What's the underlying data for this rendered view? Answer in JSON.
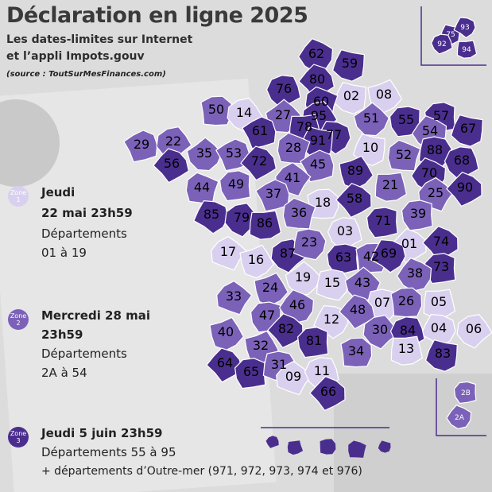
{
  "header": {
    "title": "Déclaration en ligne 2025",
    "subtitle_line1": "Les dates-limites sur Internet",
    "subtitle_line2": "et l’appli Impots.gouv",
    "source": "(source : ToutSurMesFinances.com)"
  },
  "colors": {
    "zone1": "#d9d0ef",
    "zone2": "#7b62b8",
    "zone3": "#4a2e8e",
    "border": "#ffffff"
  },
  "zones": [
    {
      "badge_word": "Zone",
      "badge_num": "1",
      "date_line1": "Jeudi",
      "date_line2": "22 mai 23h59",
      "depts_line1": "Départements",
      "depts_line2": "01 à 19",
      "color": "#d9d0ef"
    },
    {
      "badge_word": "Zone",
      "badge_num": "2",
      "date_line1": "Mercredi 28 mai",
      "date_line2": "23h59",
      "depts_line1": "Départements",
      "depts_line2": "2A à 54",
      "color": "#7b62b8"
    },
    {
      "badge_word": "Zone",
      "badge_num": "3",
      "date_line1": "Jeudi 5 juin 23h59",
      "depts_line1": "Départements 55 à 95",
      "depts_line2": "+ départements d’Outre-mer (971, 972, 973, 974 et 976)",
      "color": "#4a2e8e"
    }
  ],
  "departements": [
    {
      "code": "62",
      "zone": 3
    },
    {
      "code": "59",
      "zone": 3
    },
    {
      "code": "80",
      "zone": 3
    },
    {
      "code": "76",
      "zone": 3
    },
    {
      "code": "02",
      "zone": 1
    },
    {
      "code": "08",
      "zone": 1
    },
    {
      "code": "60",
      "zone": 3
    },
    {
      "code": "50",
      "zone": 2
    },
    {
      "code": "14",
      "zone": 1
    },
    {
      "code": "27",
      "zone": 2
    },
    {
      "code": "95",
      "zone": 3
    },
    {
      "code": "51",
      "zone": 2
    },
    {
      "code": "55",
      "zone": 3
    },
    {
      "code": "57",
      "zone": 3
    },
    {
      "code": "67",
      "zone": 3
    },
    {
      "code": "54",
      "zone": 2
    },
    {
      "code": "78",
      "zone": 3
    },
    {
      "code": "77",
      "zone": 3
    },
    {
      "code": "91",
      "zone": 3
    },
    {
      "code": "61",
      "zone": 3
    },
    {
      "code": "29",
      "zone": 2
    },
    {
      "code": "22",
      "zone": 2
    },
    {
      "code": "35",
      "zone": 2
    },
    {
      "code": "53",
      "zone": 2
    },
    {
      "code": "72",
      "zone": 3
    },
    {
      "code": "28",
      "zone": 2
    },
    {
      "code": "45",
      "zone": 2
    },
    {
      "code": "10",
      "zone": 1
    },
    {
      "code": "52",
      "zone": 2
    },
    {
      "code": "88",
      "zone": 3
    },
    {
      "code": "68",
      "zone": 3
    },
    {
      "code": "70",
      "zone": 3
    },
    {
      "code": "56",
      "zone": 3
    },
    {
      "code": "44",
      "zone": 2
    },
    {
      "code": "49",
      "zone": 2
    },
    {
      "code": "41",
      "zone": 2
    },
    {
      "code": "89",
      "zone": 3
    },
    {
      "code": "21",
      "zone": 2
    },
    {
      "code": "25",
      "zone": 2
    },
    {
      "code": "90",
      "zone": 3
    },
    {
      "code": "37",
      "zone": 2
    },
    {
      "code": "18",
      "zone": 1
    },
    {
      "code": "58",
      "zone": 3
    },
    {
      "code": "85",
      "zone": 3
    },
    {
      "code": "79",
      "zone": 3
    },
    {
      "code": "86",
      "zone": 3
    },
    {
      "code": "36",
      "zone": 2
    },
    {
      "code": "71",
      "zone": 3
    },
    {
      "code": "39",
      "zone": 2
    },
    {
      "code": "03",
      "zone": 1
    },
    {
      "code": "01",
      "zone": 1
    },
    {
      "code": "74",
      "zone": 3
    },
    {
      "code": "17",
      "zone": 1
    },
    {
      "code": "16",
      "zone": 1
    },
    {
      "code": "87",
      "zone": 3
    },
    {
      "code": "23",
      "zone": 2
    },
    {
      "code": "63",
      "zone": 3
    },
    {
      "code": "42",
      "zone": 2
    },
    {
      "code": "69",
      "zone": 3
    },
    {
      "code": "73",
      "zone": 3
    },
    {
      "code": "38",
      "zone": 2
    },
    {
      "code": "24",
      "zone": 2
    },
    {
      "code": "19",
      "zone": 1
    },
    {
      "code": "15",
      "zone": 1
    },
    {
      "code": "43",
      "zone": 2
    },
    {
      "code": "07",
      "zone": 1
    },
    {
      "code": "26",
      "zone": 2
    },
    {
      "code": "05",
      "zone": 1
    },
    {
      "code": "33",
      "zone": 2
    },
    {
      "code": "47",
      "zone": 2
    },
    {
      "code": "46",
      "zone": 2
    },
    {
      "code": "12",
      "zone": 1
    },
    {
      "code": "48",
      "zone": 2
    },
    {
      "code": "04",
      "zone": 1
    },
    {
      "code": "06",
      "zone": 1
    },
    {
      "code": "40",
      "zone": 2
    },
    {
      "code": "82",
      "zone": 3
    },
    {
      "code": "81",
      "zone": 3
    },
    {
      "code": "30",
      "zone": 2
    },
    {
      "code": "84",
      "zone": 3
    },
    {
      "code": "83",
      "zone": 3
    },
    {
      "code": "32",
      "zone": 2
    },
    {
      "code": "34",
      "zone": 2
    },
    {
      "code": "13",
      "zone": 1
    },
    {
      "code": "64",
      "zone": 3
    },
    {
      "code": "65",
      "zone": 3
    },
    {
      "code": "31",
      "zone": 2
    },
    {
      "code": "09",
      "zone": 1
    },
    {
      "code": "11",
      "zone": 1
    },
    {
      "code": "66",
      "zone": 3
    },
    {
      "code": "2B",
      "zone": 2
    },
    {
      "code": "2A",
      "zone": 2
    }
  ],
  "inset_idf": [
    {
      "code": "75",
      "zone": 3
    },
    {
      "code": "93",
      "zone": 3
    },
    {
      "code": "92",
      "zone": 3
    },
    {
      "code": "94",
      "zone": 3
    }
  ],
  "dom": [
    {
      "name": "guadeloupe-icon",
      "zone": 3
    },
    {
      "name": "martinique-icon",
      "zone": 3
    },
    {
      "name": "guyane-icon",
      "zone": 3
    },
    {
      "name": "reunion-icon",
      "zone": 3
    },
    {
      "name": "mayotte-icon",
      "zone": 3
    }
  ]
}
